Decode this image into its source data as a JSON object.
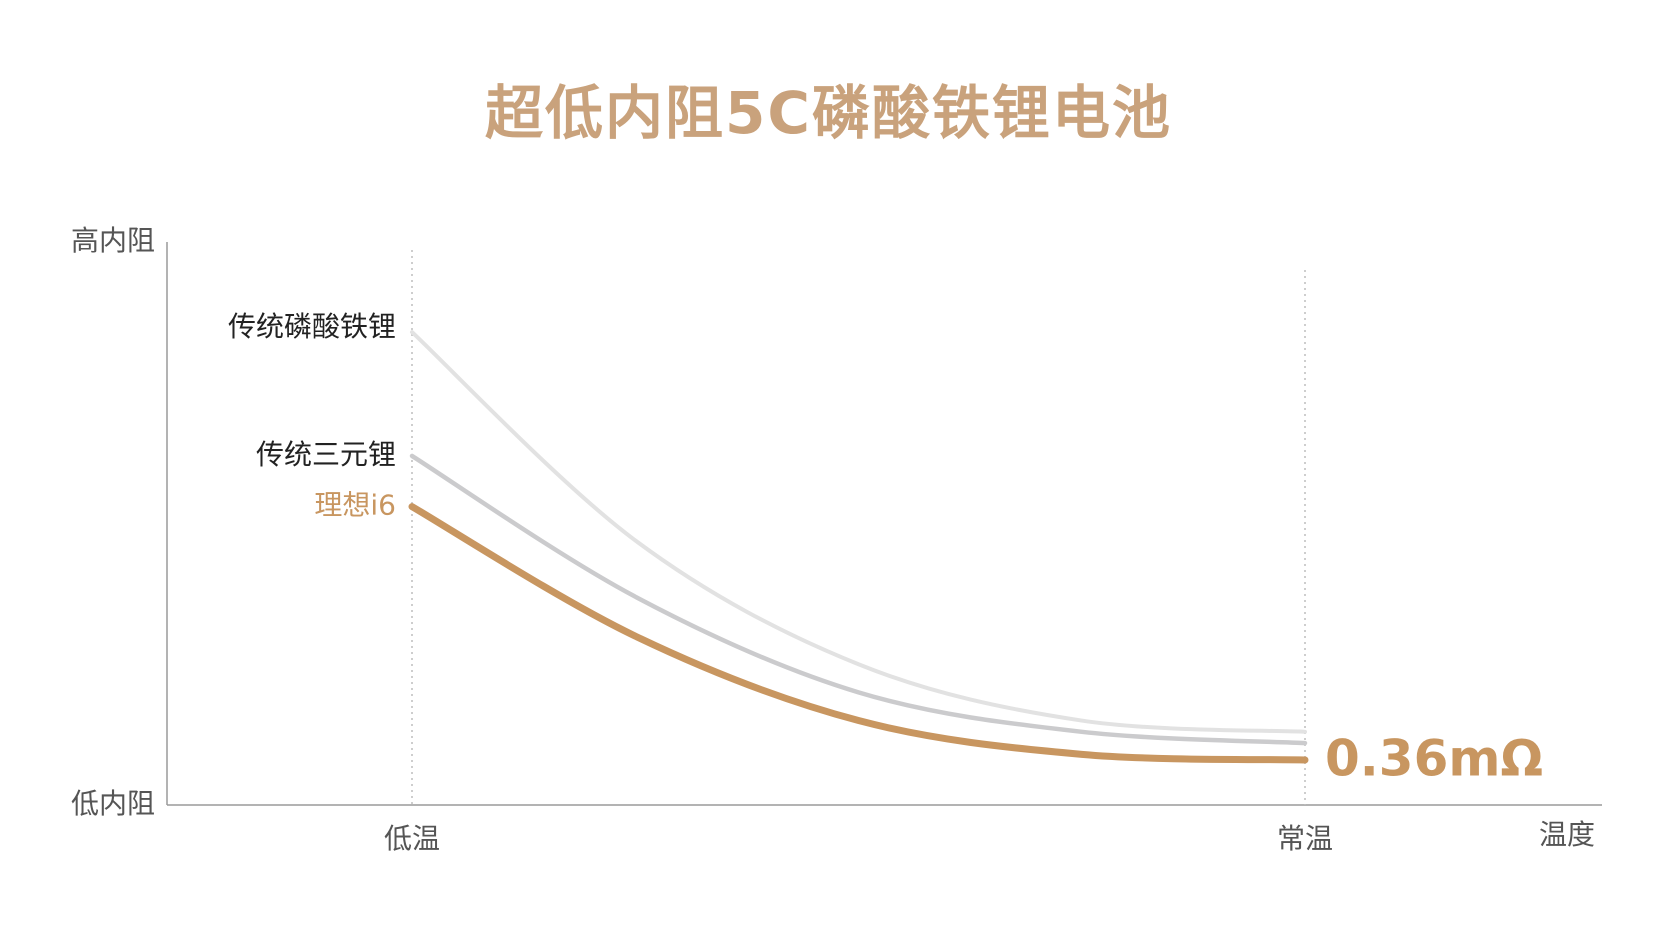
{
  "title": "超低内阻5C磷酸铁锂电池",
  "chart_data": {
    "type": "line",
    "title": "超低内阻5C磷酸铁锂电池",
    "xlabel": "温度",
    "ylabel": "",
    "y_tick_labels": [
      "高内阻",
      "低内阻"
    ],
    "x_tick_labels": [
      "低温",
      "常温"
    ],
    "x": [
      0,
      0.25,
      0.5,
      0.75,
      1.0
    ],
    "xlim": [
      0,
      1
    ],
    "ylim": [
      0,
      1
    ],
    "series": [
      {
        "name": "传统磷酸铁锂",
        "values": [
          0.84,
          0.47,
          0.25,
          0.15,
          0.13
        ],
        "color": "#e2e2e2"
      },
      {
        "name": "传统三元锂",
        "values": [
          0.62,
          0.37,
          0.2,
          0.13,
          0.11
        ],
        "color": "#cbcbcd"
      },
      {
        "name": "理想i6",
        "values": [
          0.53,
          0.3,
          0.15,
          0.09,
          0.08
        ],
        "color": "#c89660"
      }
    ],
    "annotation": "0.36mΩ",
    "accent_color": "#c89660",
    "grid": false
  }
}
